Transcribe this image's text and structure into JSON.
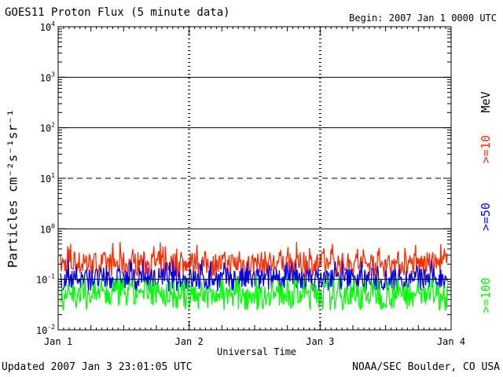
{
  "header": {
    "title": "GOES11 Proton Flux (5 minute data)",
    "begin": "Begin: 2007 Jan 1 0000 UTC"
  },
  "footer": {
    "updated": "Updated 2007 Jan  3 23:01:05 UTC",
    "credit": "NOAA/SEC Boulder, CO USA"
  },
  "right_labels": {
    "unit": "MeV",
    "ge10": ">=10",
    "ge50": ">=50",
    "ge100": ">=100"
  },
  "colors": {
    "ge10": "#ff2a00",
    "ge50": "#0000ff",
    "ge100": "#00ff00",
    "axes": "#000000"
  },
  "chart_data": {
    "type": "line",
    "title": "GOES11 Proton Flux (5 minute data)",
    "xlabel": "Universal Time",
    "ylabel": "Particles cm⁻²s⁻¹sr⁻¹",
    "y_scale": "log",
    "ylim": [
      0.01,
      10000
    ],
    "y_tick_values": [
      0.01,
      0.1,
      1,
      10,
      100,
      1000,
      10000
    ],
    "y_tick_labels": [
      {
        "base": "10",
        "exp": "-2"
      },
      {
        "base": "10",
        "exp": "-1"
      },
      {
        "base": "10",
        "exp": "0"
      },
      {
        "base": "10",
        "exp": "1"
      },
      {
        "base": "10",
        "exp": "2"
      },
      {
        "base": "10",
        "exp": "3"
      },
      {
        "base": "10",
        "exp": "4"
      }
    ],
    "x_range": [
      "2007-01-01",
      "2007-01-04"
    ],
    "x_tick_labels": [
      "Jan 1",
      "Jan 2",
      "Jan 3",
      "Jan 4"
    ],
    "grid": "horizontal lines at each decade; dashed at 10^1",
    "series": [
      {
        "name": ">=10",
        "color": "#ff2a00",
        "typical": 0.2,
        "min": 0.1,
        "max": 0.55
      },
      {
        "name": ">=50",
        "color": "#0000ff",
        "typical": 0.1,
        "min": 0.05,
        "max": 0.25
      },
      {
        "name": ">=100",
        "color": "#00ff00",
        "typical": 0.05,
        "min": 0.02,
        "max": 0.12
      }
    ]
  }
}
